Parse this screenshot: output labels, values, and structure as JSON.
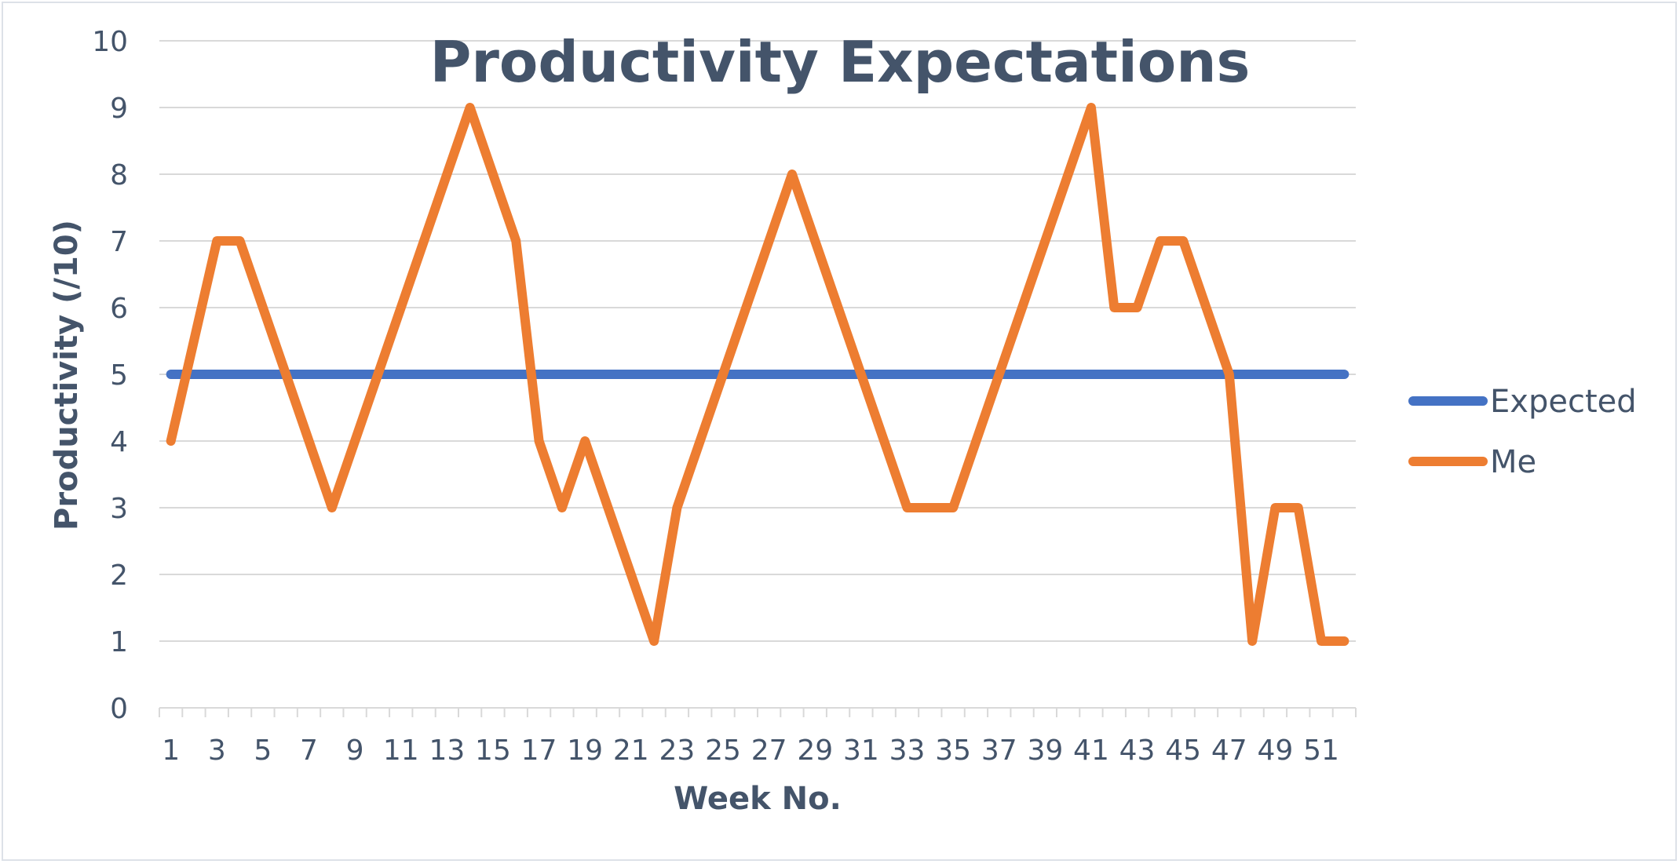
{
  "chart_data": {
    "type": "line",
    "title": "Productivity Expectations",
    "xlabel": "Week No.",
    "ylabel": "Productivity (/10)",
    "x": [
      1,
      2,
      3,
      4,
      5,
      6,
      7,
      8,
      9,
      10,
      11,
      12,
      13,
      14,
      15,
      16,
      17,
      18,
      19,
      20,
      21,
      22,
      23,
      24,
      25,
      26,
      27,
      28,
      29,
      30,
      31,
      32,
      33,
      34,
      35,
      36,
      37,
      38,
      39,
      40,
      41,
      42,
      43,
      44,
      45,
      46,
      47,
      48,
      49,
      50,
      51,
      52
    ],
    "x_tick_labels": [
      "1",
      "3",
      "5",
      "7",
      "9",
      "11",
      "13",
      "15",
      "17",
      "19",
      "21",
      "23",
      "25",
      "27",
      "29",
      "31",
      "33",
      "35",
      "37",
      "39",
      "41",
      "43",
      "45",
      "47",
      "49",
      "51"
    ],
    "y_tick_labels": [
      "0",
      "1",
      "2",
      "3",
      "4",
      "5",
      "6",
      "7",
      "8",
      "9",
      "10"
    ],
    "ylim": [
      0,
      10
    ],
    "grid": true,
    "legend_position": "right",
    "series": [
      {
        "name": "Expected",
        "color": "#4472c4",
        "values": [
          5,
          5,
          5,
          5,
          5,
          5,
          5,
          5,
          5,
          5,
          5,
          5,
          5,
          5,
          5,
          5,
          5,
          5,
          5,
          5,
          5,
          5,
          5,
          5,
          5,
          5,
          5,
          5,
          5,
          5,
          5,
          5,
          5,
          5,
          5,
          5,
          5,
          5,
          5,
          5,
          5,
          5,
          5,
          5,
          5,
          5,
          5,
          5,
          5,
          5,
          5,
          5
        ]
      },
      {
        "name": "Me",
        "color": "#ed7d31",
        "values": [
          4,
          5.5,
          7,
          7,
          6,
          5,
          4,
          3,
          4,
          5,
          6,
          7,
          8,
          9,
          8,
          7,
          4,
          3,
          4,
          3,
          2,
          1,
          3,
          4,
          5,
          6,
          7,
          8,
          7,
          6,
          5,
          4,
          3,
          3,
          3,
          4,
          5,
          6,
          7,
          8,
          9,
          6,
          6,
          7,
          7,
          6,
          5,
          1,
          3,
          3,
          1,
          1
        ]
      }
    ]
  }
}
